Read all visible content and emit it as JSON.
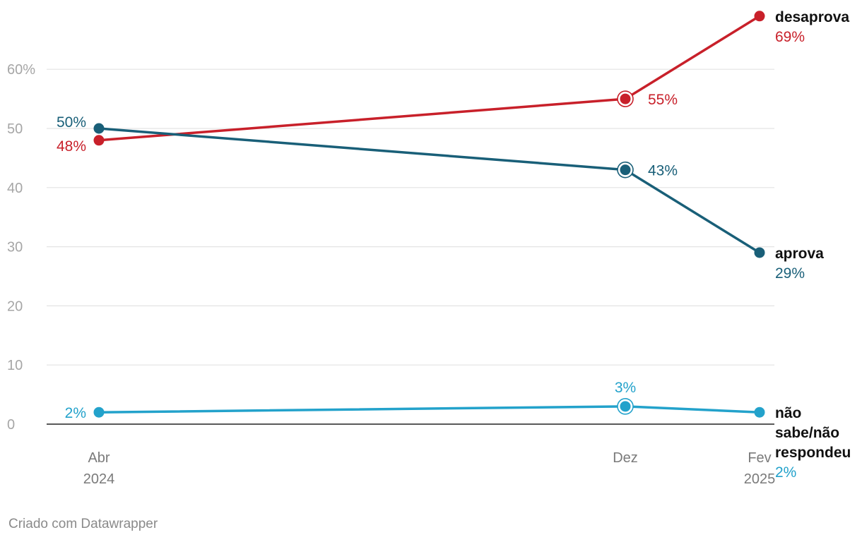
{
  "chart_data": {
    "type": "line",
    "x": [
      "Abr 2024",
      "Dez 2024",
      "Fev 2025"
    ],
    "x_tick_labels": [
      [
        "Abr",
        "2024"
      ],
      [
        "Dez",
        ""
      ],
      [
        "Fev",
        "2025"
      ]
    ],
    "ylim": [
      0,
      69
    ],
    "y_ticks": [
      0,
      10,
      20,
      30,
      40,
      50,
      60
    ],
    "y_tick_labels": [
      "0",
      "10",
      "20",
      "30",
      "40",
      "50",
      "60%"
    ],
    "grid": true,
    "legend": "direct labels at line ends (right)",
    "series": [
      {
        "name": "desaprova",
        "color": "#c8202a",
        "values": [
          48,
          55,
          69
        ],
        "value_labels": [
          "48%",
          "55%",
          "69%"
        ],
        "highlighted_point": 1
      },
      {
        "name": "aprova",
        "color": "#195f78",
        "values": [
          50,
          43,
          29
        ],
        "value_labels": [
          "50%",
          "43%",
          "29%"
        ],
        "highlighted_point": 1
      },
      {
        "name": "não sabe/não respondeu",
        "name_lines": [
          "não",
          "sabe/não",
          "respondeu"
        ],
        "color": "#23a2cb",
        "values": [
          2,
          3,
          2
        ],
        "value_labels": [
          "2%",
          "3%",
          "2%"
        ],
        "highlighted_point": 1
      }
    ]
  },
  "footer": {
    "credit": "Criado com Datawrapper"
  }
}
